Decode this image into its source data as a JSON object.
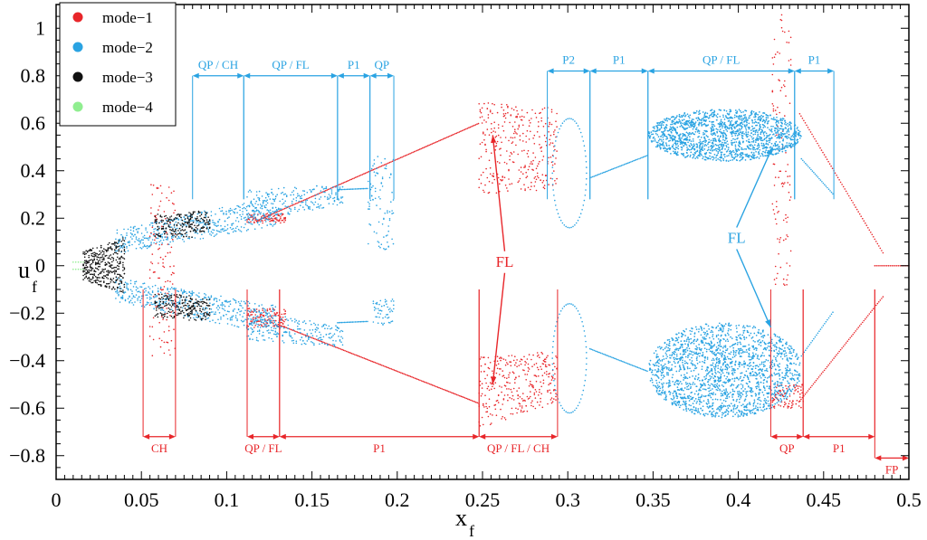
{
  "chart_data": {
    "type": "scatter",
    "title": "",
    "xlabel": "x",
    "xlabel_sub": "f",
    "ylabel": "u",
    "ylabel_sub": "f",
    "xlim": [
      0,
      0.5
    ],
    "ylim": [
      -0.9,
      1.1
    ],
    "xticks": [
      {
        "v": 0,
        "label": "0"
      },
      {
        "v": 0.05,
        "label": "0.05"
      },
      {
        "v": 0.1,
        "label": "0.1"
      },
      {
        "v": 0.15,
        "label": "0.15"
      },
      {
        "v": 0.2,
        "label": "0.2"
      },
      {
        "v": 0.25,
        "label": "0.25"
      },
      {
        "v": 0.3,
        "label": "0.3"
      },
      {
        "v": 0.35,
        "label": "0.35"
      },
      {
        "v": 0.4,
        "label": "0.4"
      },
      {
        "v": 0.45,
        "label": "0.45"
      },
      {
        "v": 0.5,
        "label": "0.5"
      }
    ],
    "yticks": [
      {
        "v": -0.8,
        "label": "−0.8"
      },
      {
        "v": -0.6,
        "label": "−0.6"
      },
      {
        "v": -0.4,
        "label": "−0.4"
      },
      {
        "v": -0.2,
        "label": "−0.2"
      },
      {
        "v": 0,
        "label": "0"
      },
      {
        "v": 0.2,
        "label": "0.2"
      },
      {
        "v": 0.4,
        "label": "0.4"
      },
      {
        "v": 0.6,
        "label": "0.6"
      },
      {
        "v": 0.8,
        "label": "0.8"
      },
      {
        "v": 1,
        "label": "1"
      }
    ],
    "grid": false,
    "legend_position": "top-left",
    "series": [
      {
        "name": "mode−1",
        "color": "#e8262a"
      },
      {
        "name": "mode−2",
        "color": "#2aa3e2"
      },
      {
        "name": "mode−3",
        "color": "#111111"
      },
      {
        "name": "mode−4",
        "color": "#90ee90"
      }
    ],
    "regions_top": [
      {
        "label": "QP / CH",
        "x0": 0.08,
        "x1": 0.11,
        "y": 0.8
      },
      {
        "label": "QP / FL",
        "x0": 0.11,
        "x1": 0.165,
        "y": 0.8
      },
      {
        "label": "P1",
        "x0": 0.165,
        "x1": 0.184,
        "y": 0.8
      },
      {
        "label": "QP",
        "x0": 0.184,
        "x1": 0.198,
        "y": 0.8
      },
      {
        "label": "P2",
        "x0": 0.288,
        "x1": 0.313,
        "y": 0.82
      },
      {
        "label": "P1",
        "x0": 0.313,
        "x1": 0.347,
        "y": 0.82
      },
      {
        "label": "QP / FL",
        "x0": 0.347,
        "x1": 0.433,
        "y": 0.82
      },
      {
        "label": "P1",
        "x0": 0.433,
        "x1": 0.456,
        "y": 0.82
      }
    ],
    "regions_bottom": [
      {
        "label": "CH",
        "x0": 0.051,
        "x1": 0.07,
        "y": -0.72
      },
      {
        "label": "QP / FL",
        "x0": 0.112,
        "x1": 0.131,
        "y": -0.72
      },
      {
        "label": "P1",
        "x0": 0.131,
        "x1": 0.248,
        "y": -0.72
      },
      {
        "label": "QP / FL / CH",
        "x0": 0.248,
        "x1": 0.294,
        "y": -0.72
      },
      {
        "label": "QP",
        "x0": 0.419,
        "x1": 0.438,
        "y": -0.72
      },
      {
        "label": "P1",
        "x0": 0.438,
        "x1": 0.48,
        "y": -0.72
      },
      {
        "label": "FP",
        "x0": 0.48,
        "x1": 0.5,
        "y": -0.81
      }
    ],
    "annotations": [
      {
        "label": "FL",
        "x": 0.263,
        "y": 0.0,
        "color": "#e8262a",
        "arrows": [
          {
            "x": 0.256,
            "y": 0.55
          },
          {
            "x": 0.256,
            "y": -0.5
          }
        ]
      },
      {
        "label": "FL",
        "x": 0.399,
        "y": 0.1,
        "color": "#2aa3e2",
        "arrows": [
          {
            "x": 0.42,
            "y": 0.5
          },
          {
            "x": 0.419,
            "y": -0.26
          }
        ]
      }
    ]
  }
}
